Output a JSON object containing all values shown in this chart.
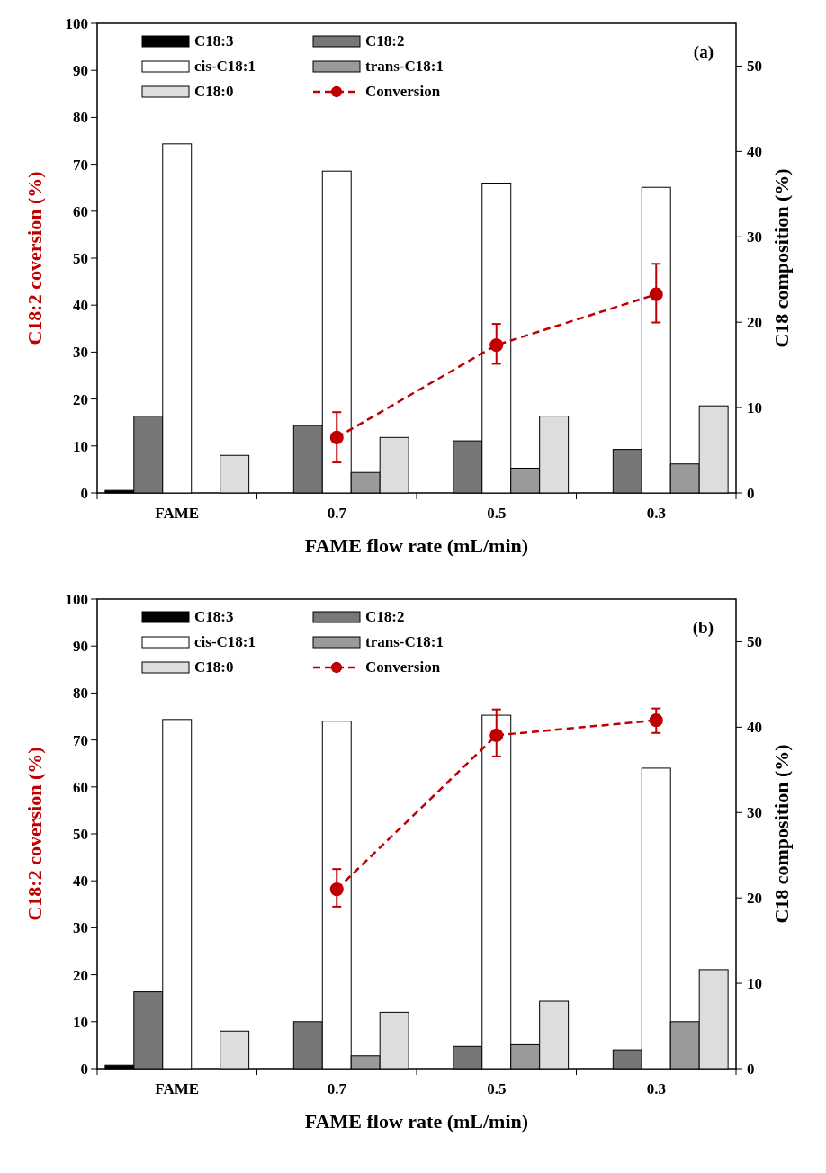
{
  "chart_data": [
    {
      "type": "bar",
      "categories": [
        "FAME",
        "0.7",
        "0.5",
        "0.3"
      ],
      "xlabel": "FAME flow rate (mL/min)",
      "ylabel": "C18:2 coversion (%)",
      "y2label": "C18 composition (%)",
      "ylim": [
        0,
        100
      ],
      "yticks": [
        0,
        10,
        20,
        30,
        40,
        50,
        60,
        70,
        80,
        90,
        100
      ],
      "y2lim": [
        0,
        55
      ],
      "y2ticks": [
        0,
        10,
        20,
        30,
        40,
        50
      ],
      "legend": "top left",
      "annotations": [
        "(a)"
      ],
      "series": [
        {
          "name": "C18:3",
          "color": "#000000",
          "axis": "y2",
          "values": [
            0.3,
            0,
            0,
            0
          ]
        },
        {
          "name": "C18:2",
          "color": "#777777",
          "axis": "y2",
          "values": [
            9.0,
            7.9,
            6.1,
            5.1
          ]
        },
        {
          "name": "cis-C18:1",
          "color": "#ffffff",
          "axis": "y2",
          "values": [
            40.9,
            37.7,
            36.3,
            35.8
          ]
        },
        {
          "name": "trans-C18:1",
          "color": "#9a9a9a",
          "axis": "y2",
          "values": [
            0,
            2.4,
            2.9,
            3.4
          ]
        },
        {
          "name": "C18:0",
          "color": "#dddddd",
          "axis": "y2",
          "values": [
            4.4,
            6.5,
            9.0,
            10.2
          ]
        },
        {
          "name": "Conversion",
          "type": "line",
          "color": "#c00000",
          "axis": "y",
          "marker": "circle",
          "line_style": "dashed",
          "values": [
            null,
            11.8,
            31.5,
            42.3
          ],
          "errors": [
            null,
            [
              6.5,
              17.2
            ],
            [
              27.5,
              36
            ],
            [
              36.3,
              48.8
            ]
          ]
        }
      ]
    },
    {
      "type": "bar",
      "categories": [
        "FAME",
        "0.7",
        "0.5",
        "0.3"
      ],
      "xlabel": "FAME flow rate (mL/min)",
      "ylabel": "C18:2 coversion (%)",
      "y2label": "C18 composition (%)",
      "ylim": [
        0,
        100
      ],
      "yticks": [
        0,
        10,
        20,
        30,
        40,
        50,
        60,
        70,
        80,
        90,
        100
      ],
      "y2lim": [
        0,
        55
      ],
      "y2ticks": [
        0,
        10,
        20,
        30,
        40,
        50
      ],
      "legend": "top left",
      "annotations": [
        "(b)"
      ],
      "series": [
        {
          "name": "C18:3",
          "color": "#000000",
          "axis": "y2",
          "values": [
            0.4,
            0,
            0,
            0
          ]
        },
        {
          "name": "C18:2",
          "color": "#777777",
          "axis": "y2",
          "values": [
            9.0,
            5.5,
            2.6,
            2.2
          ]
        },
        {
          "name": "cis-C18:1",
          "color": "#ffffff",
          "axis": "y2",
          "values": [
            40.9,
            40.7,
            41.4,
            35.2
          ]
        },
        {
          "name": "trans-C18:1",
          "color": "#9a9a9a",
          "axis": "y2",
          "values": [
            0,
            1.5,
            2.8,
            5.5
          ]
        },
        {
          "name": "C18:0",
          "color": "#dddddd",
          "axis": "y2",
          "values": [
            4.4,
            6.6,
            7.9,
            11.6
          ]
        },
        {
          "name": "Conversion",
          "type": "line",
          "color": "#c00000",
          "axis": "y",
          "marker": "circle",
          "line_style": "dashed",
          "values": [
            null,
            38.2,
            71,
            74.2
          ],
          "errors": [
            null,
            [
              34.5,
              42.5
            ],
            [
              66.5,
              76.5
            ],
            [
              71.5,
              76.7
            ]
          ]
        }
      ]
    }
  ]
}
